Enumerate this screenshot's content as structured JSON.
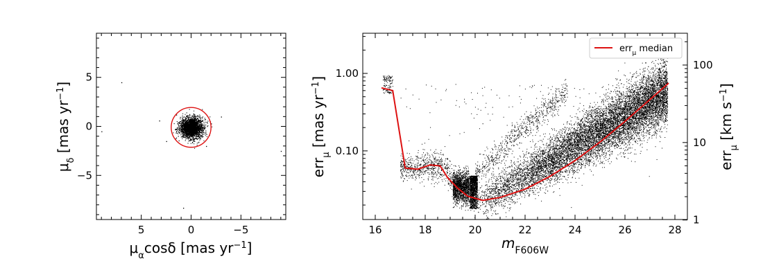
{
  "chart_data": [
    {
      "type": "scatter",
      "panel": "left",
      "title": "",
      "xlabel": {
        "base": "μ",
        "sub": "α",
        "rest": "cosδ [mas yr",
        "sup": "−1",
        "close": "]"
      },
      "ylabel": {
        "base": "μ",
        "sub": "δ",
        "rest": " [mas yr",
        "sup": "−1",
        "close": "]"
      },
      "xlim": [
        9.5,
        -9.5
      ],
      "ylim": [
        -9.5,
        9.5
      ],
      "xticks": [
        5,
        0,
        -5
      ],
      "xtick_labels": [
        "5",
        "0",
        "−5"
      ],
      "yticks": [
        5,
        0,
        -5
      ],
      "ytick_labels": [
        "5",
        "0",
        "−5"
      ],
      "cluster": {
        "center": [
          0.0,
          -0.1
        ],
        "sigma": 0.55,
        "points": 2600
      },
      "outliers": [
        [
          7.0,
          4.5
        ],
        [
          9.0,
          -0.5
        ],
        [
          -9.0,
          -2.5
        ],
        [
          2.5,
          -1.5
        ],
        [
          -1.5,
          -2.0
        ],
        [
          1.5,
          1.2
        ],
        [
          -2.0,
          0.3
        ],
        [
          0.8,
          -8.3
        ],
        [
          -3.0,
          1.0
        ],
        [
          3.2,
          0.6
        ]
      ],
      "selection_circle": {
        "center": [
          0.0,
          -0.1
        ],
        "radius": 2.0,
        "color": "#dd1111"
      }
    },
    {
      "type": "scatter",
      "panel": "right",
      "title": "",
      "xlabel": {
        "base": "m",
        "sub": "F606W"
      },
      "ylabel": {
        "base": "err",
        "sub": "μ",
        "rest": " [mas yr",
        "sup": "−1",
        "close": "]"
      },
      "ylabel_right": {
        "base": "err",
        "sub": "μ",
        "rest": " [km s",
        "sup": "−1",
        "close": "]"
      },
      "xlim": [
        15.5,
        28.5
      ],
      "ylim_log": [
        0.013,
        3.3
      ],
      "xticks": [
        16,
        18,
        20,
        22,
        24,
        26,
        28
      ],
      "xtick_labels": [
        "16",
        "18",
        "20",
        "22",
        "24",
        "26",
        "28"
      ],
      "yticks": [
        0.1,
        1.0
      ],
      "ytick_labels": [
        "0.10",
        "1.00"
      ],
      "right_ticks_kms": [
        1,
        10,
        100
      ],
      "right_tick_labels": [
        "1",
        "10",
        "100"
      ],
      "kms_per_mas_yr": 78.0,
      "median": {
        "legend": {
          "base": "err",
          "sub": "μ",
          "rest": " median"
        },
        "color": "#dd1111",
        "x": [
          16.25,
          16.7,
          17.2,
          17.7,
          18.2,
          18.6,
          18.9,
          19.3,
          19.7,
          20.3,
          21.0,
          22.0,
          23.0,
          24.0,
          25.0,
          26.0,
          27.0,
          27.75
        ],
        "y": [
          0.65,
          0.6,
          0.06,
          0.058,
          0.066,
          0.064,
          0.045,
          0.033,
          0.026,
          0.023,
          0.025,
          0.032,
          0.047,
          0.075,
          0.13,
          0.24,
          0.46,
          0.75
        ]
      }
    }
  ]
}
